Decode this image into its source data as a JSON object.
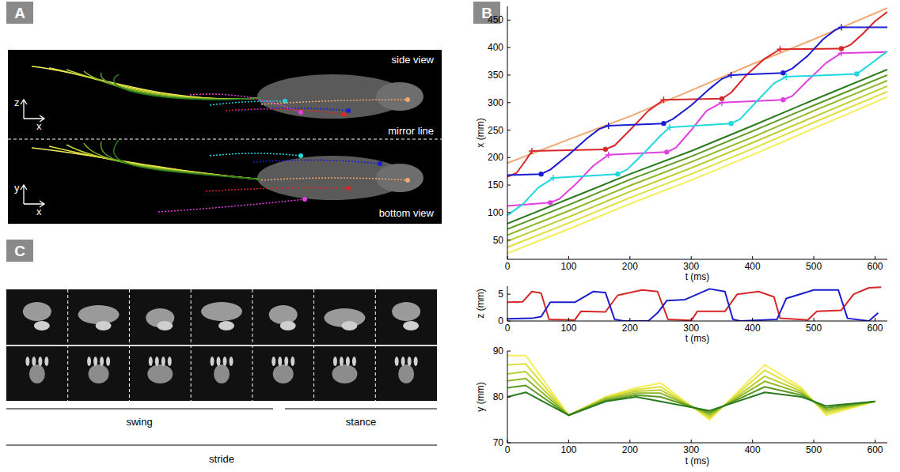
{
  "panel_labels": {
    "a": "A",
    "b": "B",
    "c": "C"
  },
  "panel_a": {
    "side_view": "side view",
    "mirror_line": "mirror line",
    "bottom_view": "bottom view",
    "side_axes": [
      "z",
      "x"
    ],
    "bottom_axes": [
      "y",
      "x"
    ]
  },
  "panel_c": {
    "phases": [
      "swing",
      "stance"
    ],
    "cycle": "stride"
  },
  "chart_data": [
    {
      "type": "line",
      "xlabel": "t (ms)",
      "ylabel": "x (mm)",
      "xlim": [
        0,
        620
      ],
      "ylim": [
        15,
        475
      ],
      "xticks": [
        0,
        100,
        200,
        300,
        400,
        500,
        600
      ],
      "yticks": [
        50,
        100,
        150,
        200,
        250,
        300,
        350,
        400,
        450
      ],
      "series": [
        {
          "color": "#f5ee5a",
          "x": [
            0,
            100,
            200,
            300,
            400,
            500,
            620
          ],
          "values": [
            26,
            70,
            116,
            159,
            205,
            253,
            310
          ]
        },
        {
          "color": "#dfe040",
          "x": [
            0,
            100,
            200,
            300,
            400,
            500,
            620
          ],
          "values": [
            37,
            81,
            127,
            170,
            216,
            264,
            320
          ]
        },
        {
          "color": "#bccf32",
          "x": [
            0,
            100,
            200,
            300,
            400,
            500,
            620
          ],
          "values": [
            48,
            92,
            138,
            181,
            227,
            274,
            330
          ]
        },
        {
          "color": "#8fb828",
          "x": [
            0,
            100,
            200,
            300,
            400,
            500,
            620
          ],
          "values": [
            59,
            103,
            149,
            192,
            237,
            285,
            340
          ]
        },
        {
          "color": "#5c9a22",
          "x": [
            0,
            100,
            200,
            300,
            400,
            500,
            620
          ],
          "values": [
            70,
            114,
            160,
            202,
            248,
            295,
            350
          ]
        },
        {
          "color": "#2a7a1e",
          "x": [
            0,
            100,
            200,
            300,
            400,
            500,
            620
          ],
          "values": [
            80,
            125,
            170,
            212,
            258,
            305,
            360
          ]
        },
        {
          "color": "#f0a870",
          "x": [
            0,
            100,
            200,
            300,
            400,
            500,
            620
          ],
          "values": [
            190,
            233,
            275,
            322,
            370,
            415,
            472
          ]
        },
        {
          "color": "#d62828",
          "x": [
            0,
            15,
            30,
            40,
            160,
            175,
            200,
            230,
            255,
            350,
            365,
            390,
            420,
            445,
            545,
            560,
            580,
            600,
            620
          ],
          "values": [
            165,
            172,
            195,
            212,
            215,
            222,
            250,
            285,
            305,
            307,
            318,
            350,
            380,
            397,
            398,
            405,
            425,
            448,
            465
          ]
        },
        {
          "color": "#1c1cd0",
          "x": [
            0,
            55,
            70,
            100,
            130,
            150,
            165,
            255,
            270,
            300,
            330,
            350,
            365,
            450,
            465,
            490,
            515,
            535,
            545,
            620
          ],
          "values": [
            168,
            170,
            178,
            205,
            235,
            252,
            258,
            262,
            270,
            295,
            325,
            343,
            350,
            354,
            362,
            385,
            415,
            432,
            437,
            437
          ]
        },
        {
          "color": "#e040e0",
          "x": [
            0,
            70,
            85,
            110,
            140,
            165,
            260,
            275,
            300,
            325,
            350,
            450,
            465,
            490,
            520,
            545,
            620
          ],
          "values": [
            112,
            118,
            125,
            150,
            185,
            205,
            210,
            218,
            250,
            285,
            300,
            305,
            312,
            340,
            372,
            390,
            392
          ]
        },
        {
          "color": "#20d8e0",
          "x": [
            0,
            25,
            50,
            75,
            180,
            195,
            220,
            250,
            265,
            365,
            380,
            405,
            435,
            455,
            570,
            590,
            610,
            620
          ],
          "values": [
            95,
            115,
            145,
            163,
            170,
            178,
            205,
            240,
            255,
            262,
            270,
            300,
            335,
            347,
            352,
            368,
            385,
            393
          ]
        },
        {
          "type": "scatter",
          "marker": "cross",
          "color": "#d62828",
          "x": [
            40,
            255,
            445
          ],
          "values": [
            212,
            305,
            397
          ]
        },
        {
          "type": "scatter",
          "marker": "dot",
          "color": "#d62828",
          "x": [
            160,
            350,
            545
          ],
          "values": [
            215,
            307,
            398
          ]
        },
        {
          "type": "scatter",
          "marker": "cross",
          "color": "#1c1cd0",
          "x": [
            165,
            365,
            545
          ],
          "values": [
            258,
            350,
            437
          ]
        },
        {
          "type": "scatter",
          "marker": "dot",
          "color": "#1c1cd0",
          "x": [
            55,
            255,
            450
          ],
          "values": [
            170,
            262,
            354
          ]
        },
        {
          "type": "scatter",
          "marker": "cross",
          "color": "#e040e0",
          "x": [
            165,
            350,
            545
          ],
          "values": [
            205,
            300,
            390
          ]
        },
        {
          "type": "scatter",
          "marker": "dot",
          "color": "#e040e0",
          "x": [
            70,
            260,
            450
          ],
          "values": [
            118,
            210,
            305
          ]
        },
        {
          "type": "scatter",
          "marker": "cross",
          "color": "#20d8e0",
          "x": [
            75,
            265,
            455
          ],
          "values": [
            163,
            255,
            347
          ]
        },
        {
          "type": "scatter",
          "marker": "dot",
          "color": "#20d8e0",
          "x": [
            180,
            365,
            570
          ],
          "values": [
            170,
            262,
            352
          ]
        }
      ]
    },
    {
      "type": "line",
      "xlabel": "t (ms)",
      "ylabel": "z (mm)",
      "xlim": [
        0,
        620
      ],
      "ylim": [
        0,
        6.5
      ],
      "xticks": [
        0,
        100,
        200,
        300,
        400,
        500,
        600
      ],
      "yticks": [
        0,
        5
      ],
      "series": [
        {
          "color": "#d62828",
          "x": [
            0,
            25,
            40,
            55,
            68,
            110,
            120,
            160,
            180,
            220,
            245,
            262,
            300,
            310,
            355,
            375,
            410,
            435,
            445,
            490,
            505,
            545,
            565,
            590,
            610
          ],
          "values": [
            3.5,
            3.6,
            5.5,
            5.2,
            0.3,
            0.2,
            1.8,
            1.7,
            4.8,
            5.8,
            5.5,
            0.3,
            0.1,
            1.8,
            1.8,
            5.0,
            5.5,
            4.5,
            0.5,
            0.2,
            1.8,
            2.0,
            5.0,
            6.2,
            6.3
          ]
        },
        {
          "color": "#1c1cd0",
          "x": [
            0,
            40,
            55,
            70,
            110,
            140,
            160,
            175,
            190,
            230,
            245,
            260,
            290,
            330,
            355,
            368,
            380,
            440,
            455,
            500,
            540,
            555,
            590,
            605
          ],
          "values": [
            0.4,
            0.5,
            0.8,
            3.5,
            3.5,
            5.5,
            5.3,
            0.3,
            0,
            0,
            1.5,
            3.8,
            4.0,
            6.0,
            5.5,
            0.3,
            0,
            0.3,
            4.2,
            5.8,
            5.8,
            0.5,
            0,
            1.5
          ]
        }
      ]
    },
    {
      "type": "line",
      "xlabel": "t (ms)",
      "ylabel": "y (mm)",
      "xlim": [
        0,
        620
      ],
      "ylim": [
        70,
        90
      ],
      "xticks": [
        0,
        100,
        200,
        300,
        400,
        500,
        600
      ],
      "yticks": [
        70,
        80,
        90
      ],
      "series": [
        {
          "color": "#f5ee5a",
          "x": [
            0,
            30,
            100,
            160,
            210,
            250,
            330,
            420,
            480,
            520,
            600
          ],
          "values": [
            89,
            89,
            76,
            80,
            82,
            83,
            75,
            87,
            82,
            76,
            79
          ]
        },
        {
          "color": "#dfe040",
          "x": [
            0,
            30,
            100,
            160,
            210,
            250,
            330,
            420,
            480,
            520,
            600
          ],
          "values": [
            87,
            87.2,
            76,
            79.9,
            81.6,
            82.2,
            75.4,
            85.8,
            81.6,
            76.4,
            79
          ]
        },
        {
          "color": "#bccf32",
          "x": [
            0,
            30,
            100,
            160,
            210,
            250,
            330,
            420,
            480,
            520,
            600
          ],
          "values": [
            85,
            85.5,
            76,
            79.7,
            81.2,
            81.5,
            75.8,
            84.5,
            81.2,
            76.8,
            79
          ]
        },
        {
          "color": "#8fb828",
          "x": [
            0,
            30,
            100,
            160,
            210,
            250,
            330,
            420,
            480,
            520,
            600
          ],
          "values": [
            83.5,
            84,
            76,
            79.5,
            80.8,
            80.8,
            76.2,
            83.4,
            80.8,
            77.2,
            79
          ]
        },
        {
          "color": "#5c9a22",
          "x": [
            0,
            30,
            100,
            160,
            210,
            250,
            330,
            420,
            480,
            520,
            600
          ],
          "values": [
            82,
            82.5,
            76,
            79.2,
            80.4,
            80,
            76.6,
            82.2,
            80.4,
            77.6,
            79
          ]
        },
        {
          "color": "#2a7a1e",
          "x": [
            0,
            30,
            100,
            160,
            210,
            250,
            330,
            420,
            480,
            520,
            600
          ],
          "values": [
            80,
            81,
            76,
            79,
            80,
            79,
            77,
            81,
            80,
            78,
            79
          ]
        }
      ]
    }
  ]
}
